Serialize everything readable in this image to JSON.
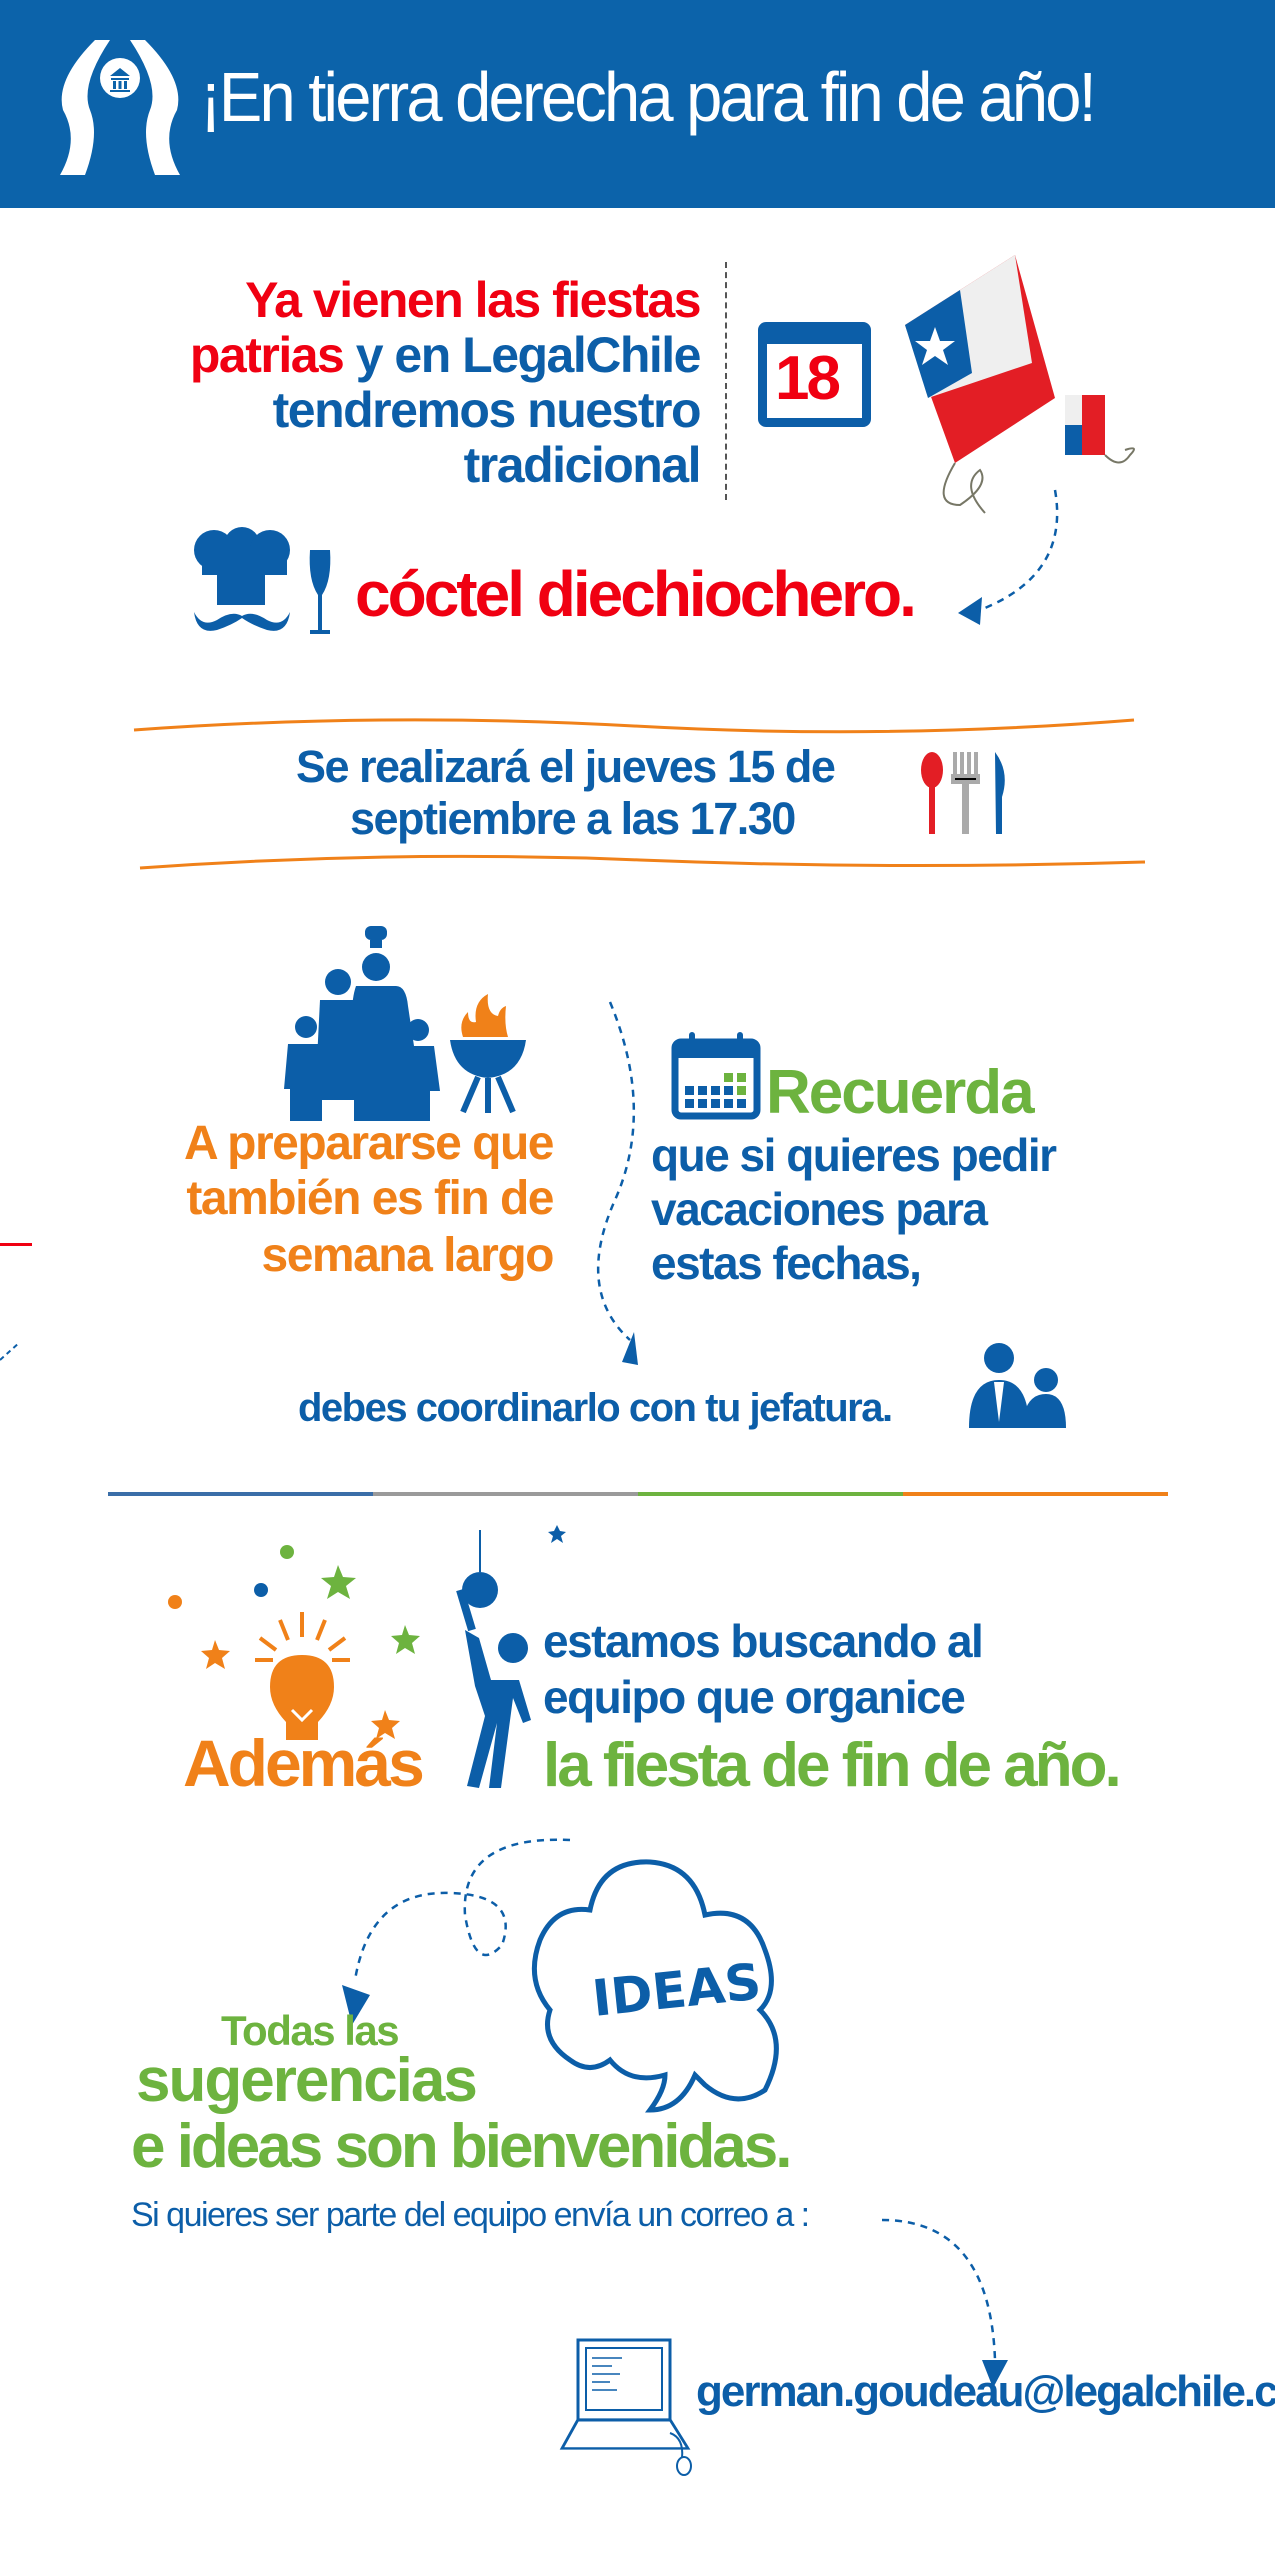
{
  "header": {
    "title": "¡En tierra derecha para fin de año!",
    "logo": "legalchile-logo"
  },
  "intro": {
    "line1": "Ya vienen las fiestas",
    "line2_red": "patrias",
    "line2_blue": " y en LegalChile",
    "line3": "tendremos nuestro",
    "line4": "tradicional",
    "calendar_day": "18",
    "event": "cóctel diechiochero."
  },
  "date": {
    "line1": "Se realizará el jueves 15 de",
    "line2": "septiembre a las 17.30"
  },
  "weekend": {
    "line1": "A prepararse que",
    "line2": "también es fin de",
    "line3": "semana largo"
  },
  "reminder": {
    "title": "Recuerda",
    "line1": "que si quieres pedir",
    "line2": "vacaciones para",
    "line3": "estas fechas,",
    "line4": "debes coordinarlo con tu jefatura."
  },
  "divider_colors": [
    "#3a6ea8",
    "#9a9a9a",
    "#6db33f",
    "#f08119"
  ],
  "party": {
    "ademas": "Además",
    "line1": "estamos buscando al",
    "line2": "equipo que organice",
    "line3": "la fiesta de fin de año."
  },
  "ideas": {
    "cloud": "IDEAS",
    "line1": "Todas las",
    "line2": "sugerencias",
    "line3": "e ideas son bienvenidas.",
    "cta": "Si quieres ser parte del equipo envía un correo a :",
    "email": "german.goudeau@legalchile.cl"
  },
  "colors": {
    "blue": "#0c5ea8",
    "red": "#f00012",
    "orange": "#f08119",
    "green": "#6db33f"
  }
}
